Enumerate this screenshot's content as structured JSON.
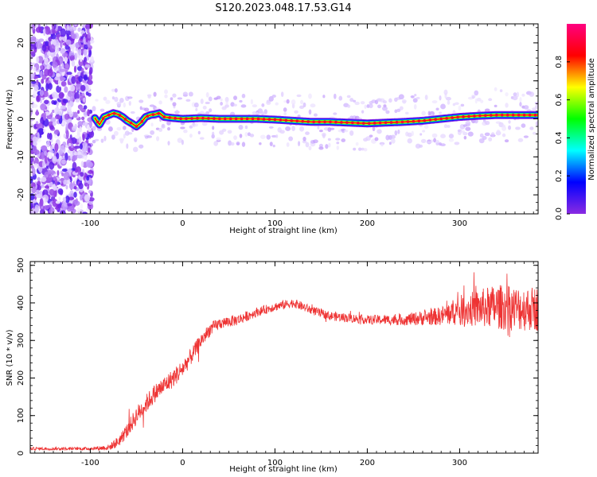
{
  "figure": {
    "title": "S120.2023.048.17.53.G14"
  },
  "chart_data": [
    {
      "type": "heatmap",
      "title": "",
      "xlabel": "Height of straight line (km)",
      "ylabel": "Frequency (Hz)",
      "xlim": [
        -165,
        385
      ],
      "ylim": [
        -25,
        25
      ],
      "x_ticks": [
        -100,
        0,
        100,
        200,
        300
      ],
      "y_ticks": [
        -20,
        -10,
        0,
        10,
        20
      ],
      "colorbar": {
        "label": "Normalized spectral amplitude",
        "range": [
          0.0,
          1.0
        ],
        "ticks": [
          0.0,
          0.2,
          0.4,
          0.6,
          0.8
        ],
        "colormap": [
          "#ffffff",
          "#c8a8ff",
          "#8a2be2",
          "#0000ff",
          "#00ffff",
          "#00ff00",
          "#ffff00",
          "#ff0000",
          "#ff0080"
        ]
      },
      "noise_region_x": [
        -165,
        -98
      ],
      "ridge": {
        "x": [
          -95,
          -90,
          -85,
          -80,
          -75,
          -70,
          -65,
          -60,
          -55,
          -50,
          -45,
          -40,
          -35,
          -30,
          -25,
          -20,
          -10,
          0,
          20,
          40,
          60,
          80,
          100,
          120,
          140,
          160,
          180,
          200,
          220,
          240,
          260,
          280,
          300,
          320,
          340,
          360,
          385
        ],
        "y": [
          0.2,
          -1.5,
          0.5,
          1.0,
          1.5,
          1.2,
          0.5,
          -0.5,
          -1.2,
          -2.0,
          -1.0,
          0.5,
          1.0,
          1.2,
          1.5,
          0.5,
          0.2,
          0.0,
          0.2,
          0.0,
          0.0,
          0.0,
          -0.2,
          -0.5,
          -0.8,
          -0.8,
          -1.0,
          -1.2,
          -1.0,
          -0.8,
          -0.5,
          0.0,
          0.5,
          0.8,
          1.0,
          1.0,
          1.0
        ]
      }
    },
    {
      "type": "line",
      "title": "",
      "xlabel": "Height of straight line (km)",
      "ylabel": "SNR (10 * v/v)",
      "xlim": [
        -165,
        385
      ],
      "ylim": [
        0,
        510
      ],
      "x_ticks": [
        -100,
        0,
        100,
        200,
        300
      ],
      "y_ticks": [
        0,
        100,
        200,
        300,
        400,
        500
      ],
      "series": [
        {
          "color": "#ee3333",
          "x": [
            -165,
            -100,
            -80,
            -70,
            -60,
            -50,
            -40,
            -30,
            -20,
            -10,
            0,
            10,
            20,
            30,
            40,
            50,
            60,
            80,
            100,
            120,
            140,
            160,
            200,
            240,
            280,
            300,
            320,
            340,
            360,
            385
          ],
          "y": [
            12,
            12,
            15,
            30,
            60,
            100,
            130,
            160,
            180,
            200,
            225,
            260,
            300,
            330,
            345,
            350,
            355,
            375,
            390,
            400,
            380,
            365,
            355,
            355,
            365,
            380,
            385,
            390,
            385,
            385
          ],
          "noise_amplitude": [
            4,
            4,
            8,
            15,
            20,
            25,
            25,
            25,
            25,
            25,
            25,
            22,
            20,
            18,
            15,
            15,
            15,
            12,
            12,
            12,
            12,
            12,
            12,
            15,
            25,
            40,
            50,
            60,
            60,
            60
          ]
        }
      ]
    }
  ]
}
